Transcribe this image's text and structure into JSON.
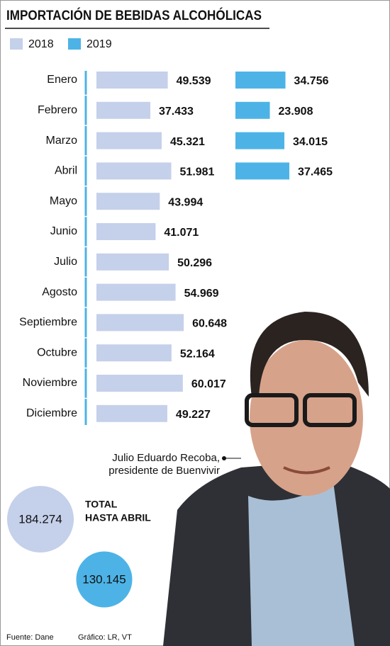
{
  "chart_data": {
    "type": "bar",
    "title": "IMPORTACIÓN DE BEBIDAS ALCOHÓLICAS",
    "categories": [
      "Enero",
      "Febrero",
      "Marzo",
      "Abril",
      "Mayo",
      "Junio",
      "Julio",
      "Agosto",
      "Septiembre",
      "Octubre",
      "Noviembre",
      "Diciembre"
    ],
    "series": [
      {
        "name": "2018",
        "color": "#c5d0ea",
        "values": [
          49539,
          37433,
          45321,
          51981,
          43994,
          41071,
          50296,
          54969,
          60648,
          52164,
          60017,
          49227
        ],
        "value_labels": [
          "49.539",
          "37.433",
          "45.321",
          "51.981",
          "43.994",
          "41.071",
          "50.296",
          "54.969",
          "60.648",
          "52.164",
          "60.017",
          "49.227"
        ]
      },
      {
        "name": "2019",
        "color": "#4db3e6",
        "values": [
          34756,
          23908,
          34015,
          37465,
          null,
          null,
          null,
          null,
          null,
          null,
          null,
          null
        ],
        "value_labels": [
          "34.756",
          "23.908",
          "34.015",
          "37.465",
          null,
          null,
          null,
          null,
          null,
          null,
          null,
          null
        ]
      }
    ],
    "totals": {
      "label": [
        "TOTAL",
        "HASTA ABRIL"
      ],
      "values": [
        184274,
        130145
      ],
      "value_labels": [
        "184.274",
        "130.145"
      ],
      "colors": [
        "#c5d0ea",
        "#4db3e6"
      ]
    },
    "caption": [
      "Julio Eduardo Recoba,",
      "presidente de Buenvivir"
    ],
    "source": "Fuente: Dane",
    "credit": "Gráfico: LR, VT"
  }
}
